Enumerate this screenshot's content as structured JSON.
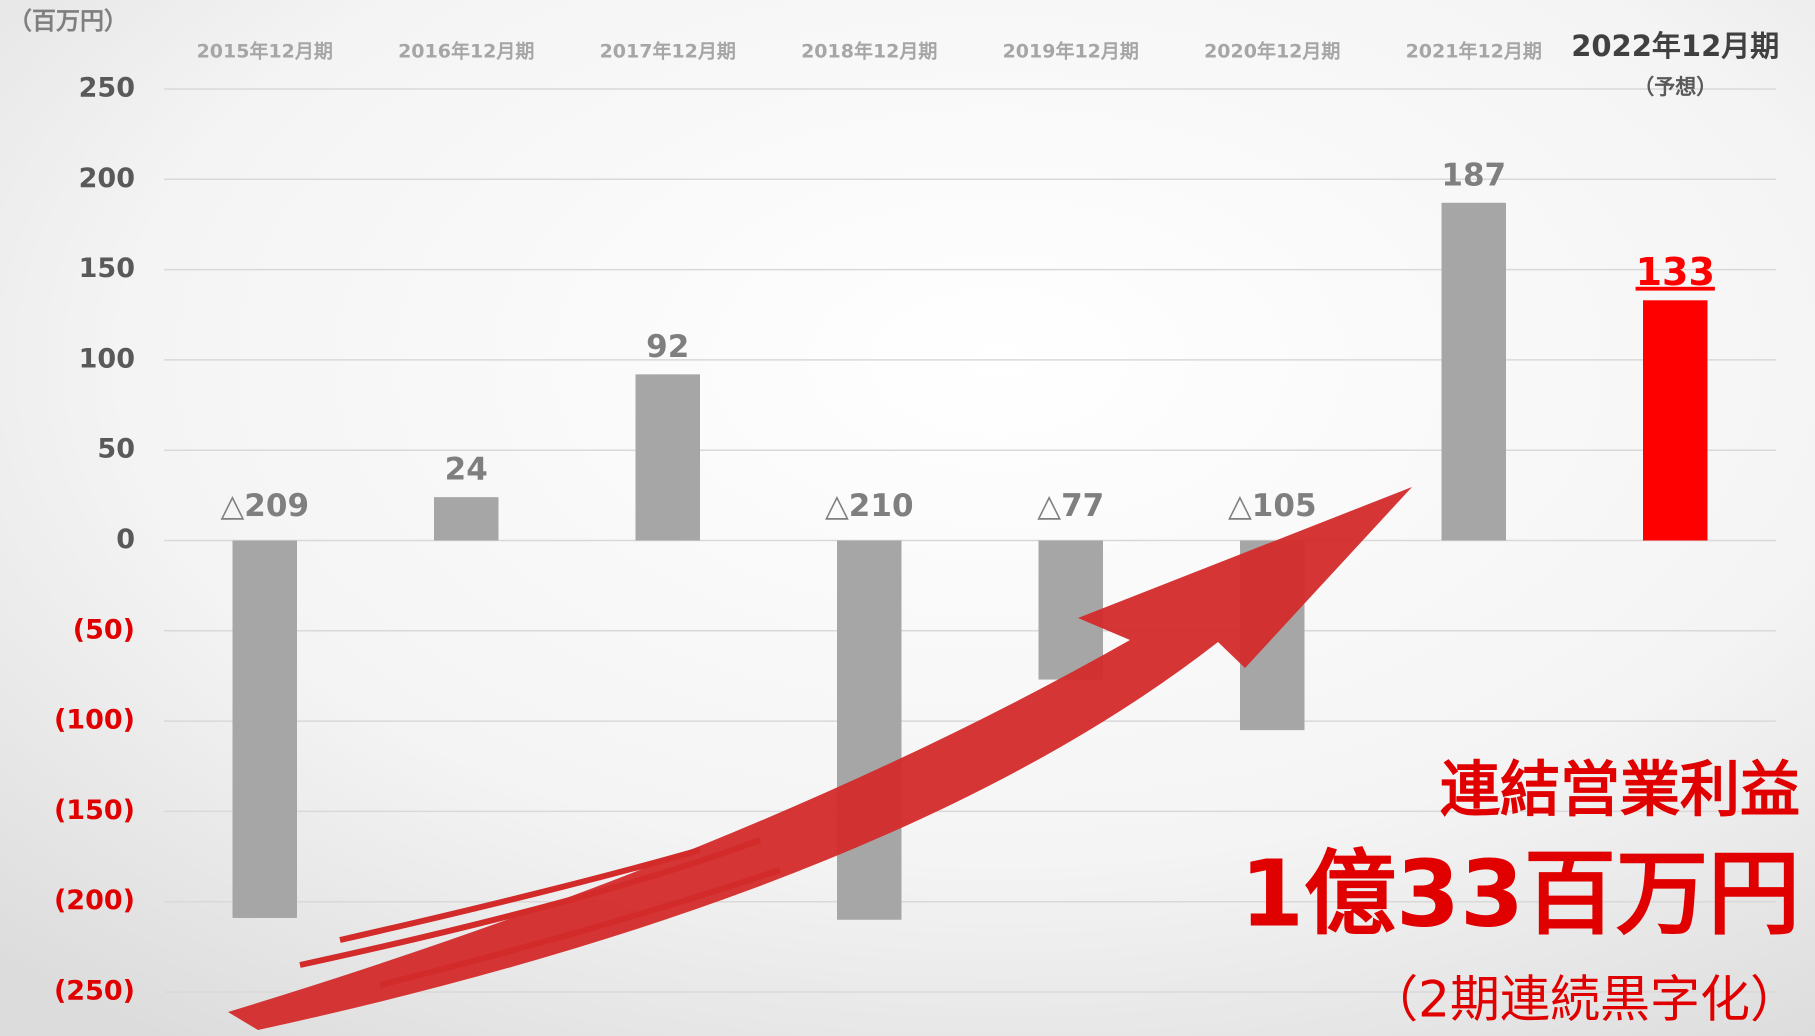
{
  "chart_data": {
    "type": "bar",
    "unit_label": "（百万円）",
    "categories": [
      "2015年12月期",
      "2016年12月期",
      "2017年12月期",
      "2018年12月期",
      "2019年12月期",
      "2020年12月期",
      "2021年12月期",
      "2022年12月期"
    ],
    "forecast_note": "（予想）",
    "values": [
      -209,
      24,
      92,
      -210,
      -77,
      -105,
      187,
      133
    ],
    "value_labels": [
      "△209",
      "24",
      "92",
      "△210",
      "△77",
      "△105",
      "187",
      "133"
    ],
    "colors": [
      "#a6a6a6",
      "#a6a6a6",
      "#a6a6a6",
      "#a6a6a6",
      "#a6a6a6",
      "#a6a6a6",
      "#a6a6a6",
      "#ff0000"
    ],
    "ylim": [
      -250,
      250
    ],
    "yticks": [
      250,
      200,
      150,
      100,
      50,
      0,
      {
        "value": -50,
        "label": "(50)"
      },
      {
        "value": -100,
        "label": "(100)"
      },
      {
        "value": -150,
        "label": "(150)"
      },
      {
        "value": -200,
        "label": "(200)"
      },
      {
        "value": -250,
        "label": "(250)"
      }
    ],
    "negative_tick_color": "#e00000",
    "grid": true,
    "annotations": [
      "連結営業利益",
      "1億33百万円",
      "（2期連続黒字化）"
    ]
  }
}
